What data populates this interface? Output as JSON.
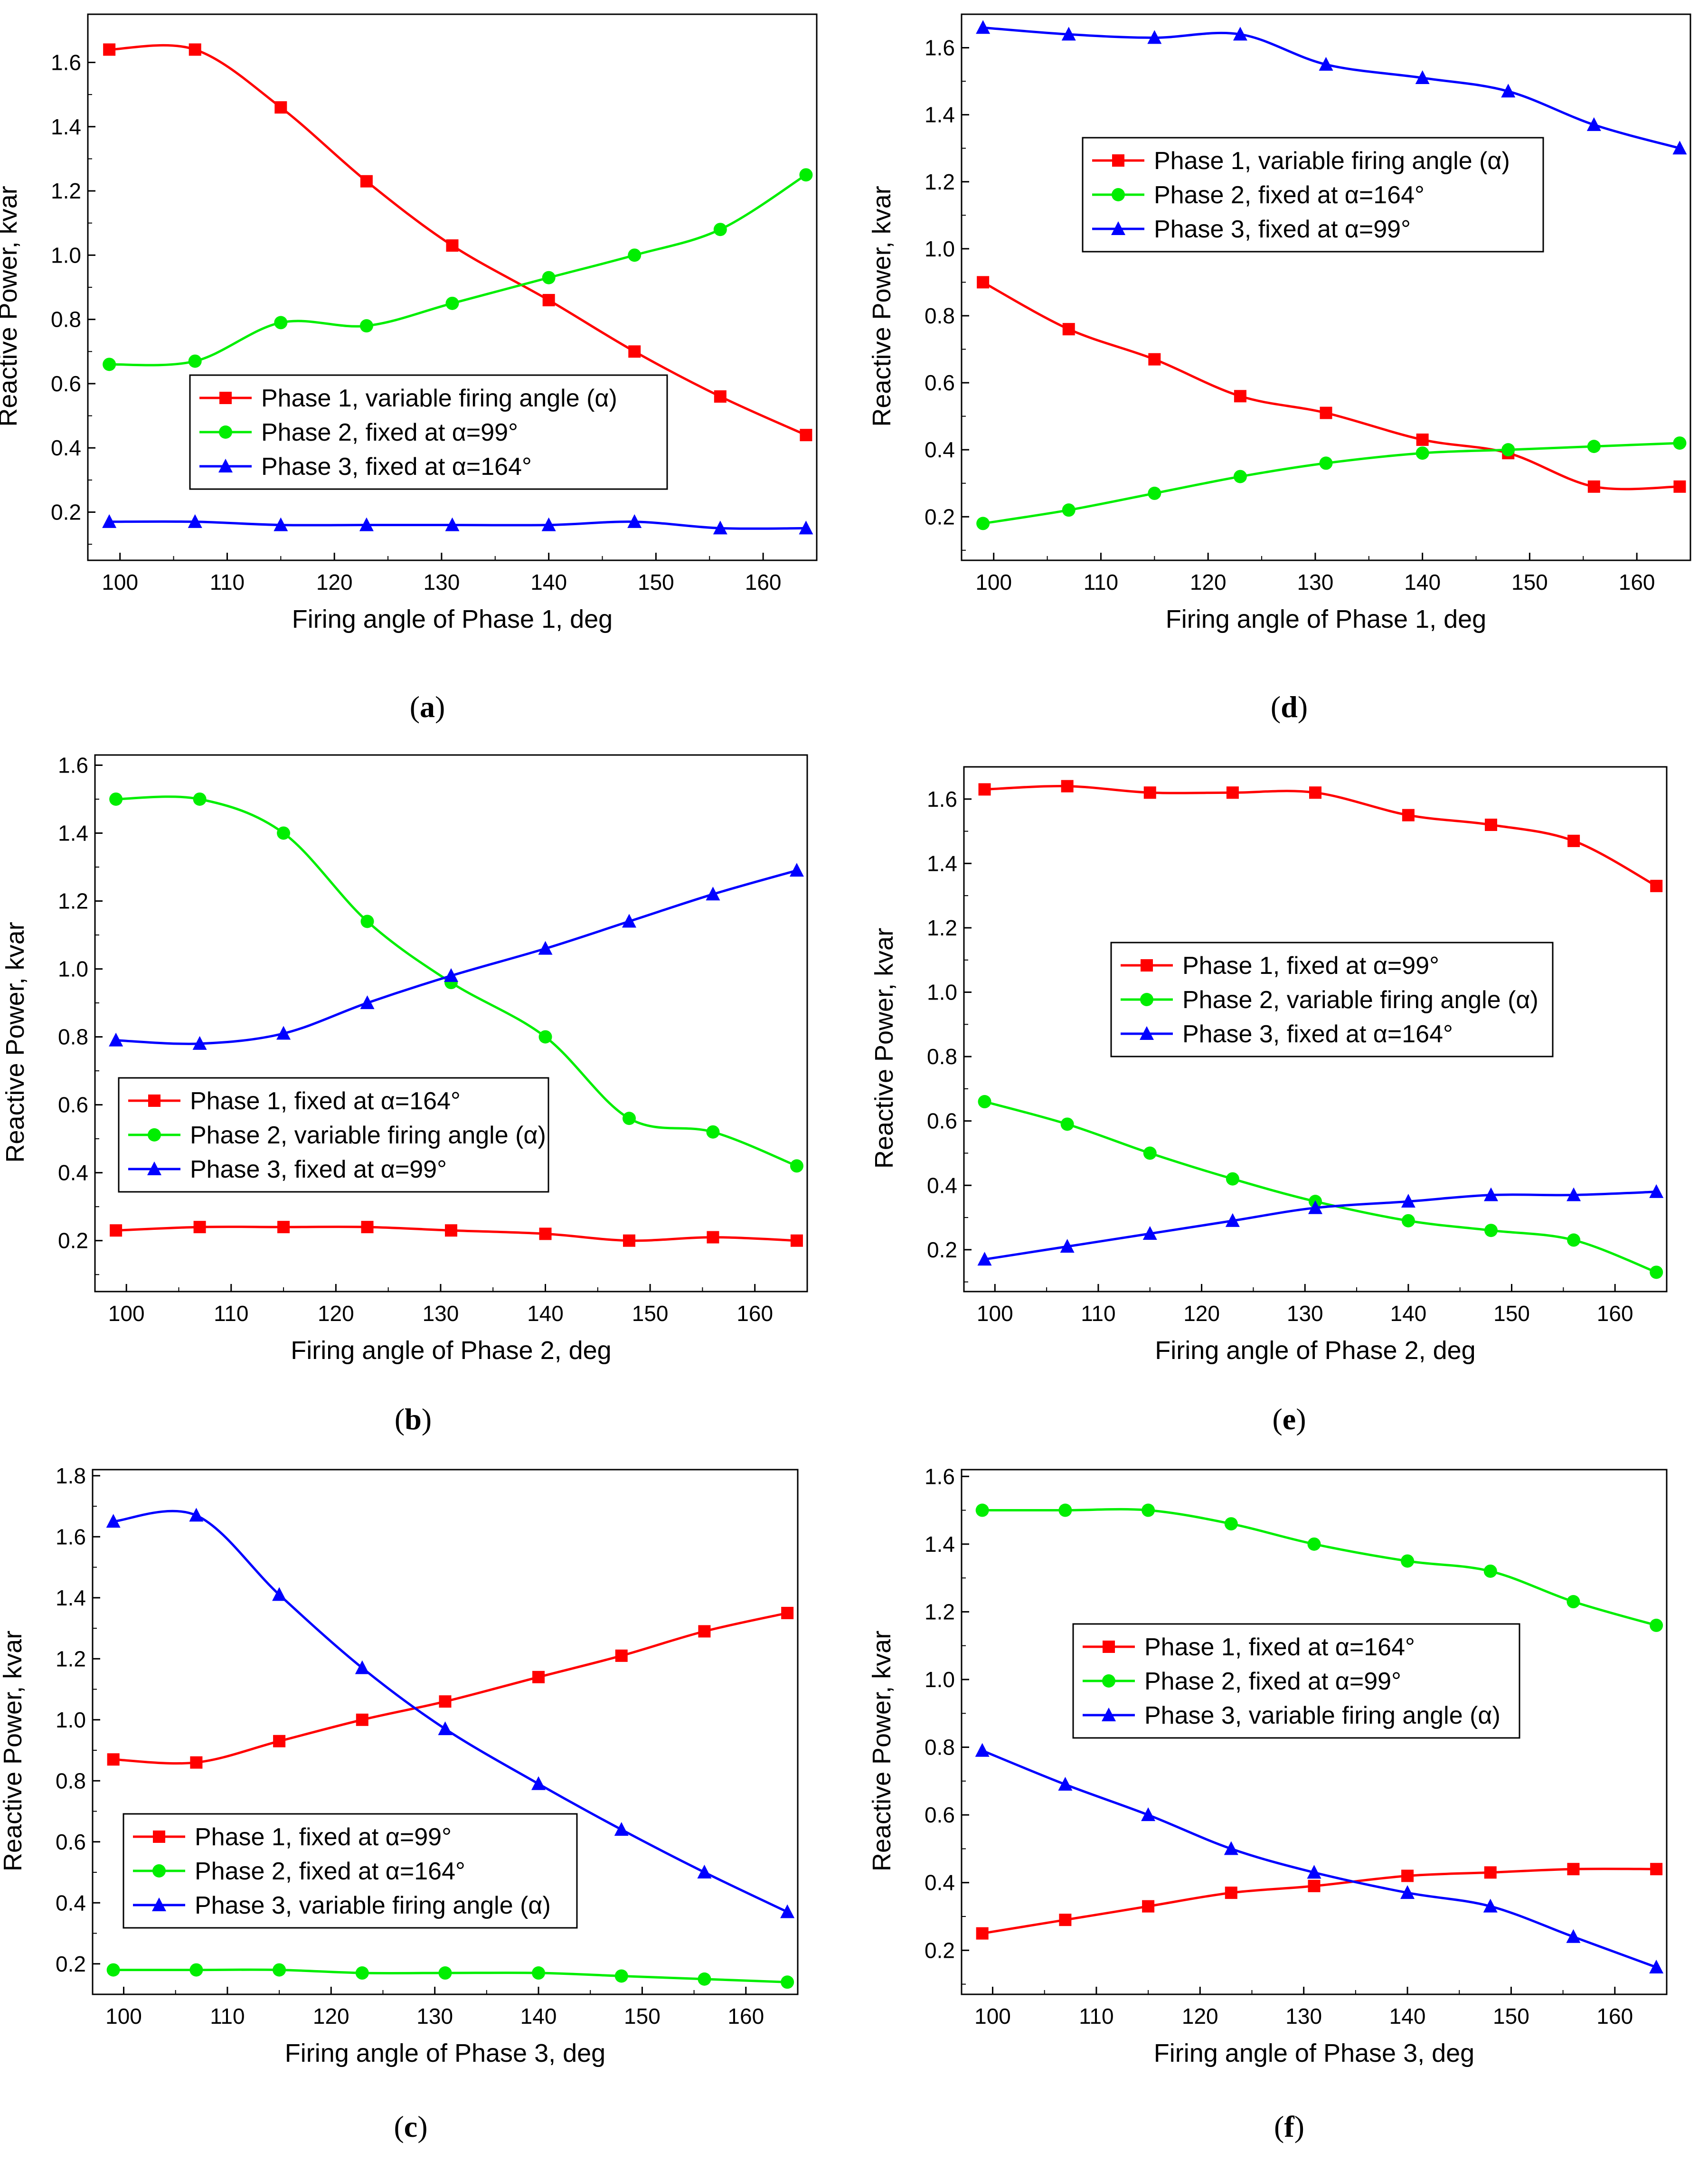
{
  "chart_data": [
    {
      "id": "a",
      "type": "line",
      "caption": "a",
      "xlabel": "Firing angle of Phase 1, deg",
      "ylabel": "Reactive Power, kvar",
      "xlim": [
        97,
        165
      ],
      "ylim": [
        0.05,
        1.75
      ],
      "xticks": [
        100,
        110,
        120,
        130,
        140,
        150,
        160
      ],
      "yticks": [
        0.2,
        0.4,
        0.6,
        0.8,
        1.0,
        1.2,
        1.4,
        1.6
      ],
      "x": [
        99,
        107,
        115,
        123,
        131,
        140,
        148,
        156,
        164
      ],
      "legend_position": "center",
      "series": [
        {
          "name": "Phase 1, variable firing angle (α)",
          "color": "#ff0000",
          "marker": "square",
          "values": [
            1.64,
            1.64,
            1.46,
            1.23,
            1.03,
            0.86,
            0.7,
            0.56,
            0.44
          ]
        },
        {
          "name": "Phase 2, fixed at α=99°",
          "color": "#00ee00",
          "marker": "circle",
          "values": [
            0.66,
            0.67,
            0.79,
            0.78,
            0.85,
            0.93,
            1.0,
            1.08,
            1.25
          ]
        },
        {
          "name": "Phase 3, fixed at α=164°",
          "color": "#0000ff",
          "marker": "triangle",
          "values": [
            0.17,
            0.17,
            0.16,
            0.16,
            0.16,
            0.16,
            0.17,
            0.15,
            0.15
          ]
        }
      ]
    },
    {
      "id": "b",
      "type": "line",
      "caption": "b",
      "xlabel": "Firing angle of Phase 2, deg",
      "ylabel": "Reactive Power, kvar",
      "xlim": [
        97,
        165
      ],
      "ylim": [
        0.05,
        1.63
      ],
      "xticks": [
        100,
        110,
        120,
        130,
        140,
        150,
        160
      ],
      "yticks": [
        0.2,
        0.4,
        0.6,
        0.8,
        1.0,
        1.2,
        1.4,
        1.6
      ],
      "x": [
        99,
        107,
        115,
        123,
        131,
        140,
        148,
        156,
        164
      ],
      "legend_position": "lower-left",
      "series": [
        {
          "name": "Phase 1, fixed at α=164°",
          "color": "#ff0000",
          "marker": "square",
          "values": [
            0.23,
            0.24,
            0.24,
            0.24,
            0.23,
            0.22,
            0.2,
            0.21,
            0.2
          ]
        },
        {
          "name": "Phase 2, variable firing angle (α)",
          "color": "#00ee00",
          "marker": "circle",
          "values": [
            1.5,
            1.5,
            1.4,
            1.14,
            0.96,
            0.8,
            0.56,
            0.52,
            0.42
          ]
        },
        {
          "name": "Phase 3, fixed at α=99°",
          "color": "#0000ff",
          "marker": "triangle",
          "values": [
            0.79,
            0.78,
            0.81,
            0.9,
            0.98,
            1.06,
            1.14,
            1.22,
            1.29
          ]
        }
      ]
    },
    {
      "id": "c",
      "type": "line",
      "caption": "c",
      "xlabel": "Firing angle of Phase 3, deg",
      "ylabel": "Reactive Power, kvar",
      "xlim": [
        97,
        165
      ],
      "ylim": [
        0.1,
        1.82
      ],
      "xticks": [
        100,
        110,
        120,
        130,
        140,
        150,
        160
      ],
      "yticks": [
        0.2,
        0.4,
        0.6,
        0.8,
        1.0,
        1.2,
        1.4,
        1.6,
        1.8
      ],
      "x": [
        99,
        107,
        115,
        123,
        131,
        140,
        148,
        156,
        164
      ],
      "legend_position": "lower-left",
      "series": [
        {
          "name": "Phase 1, fixed at α=99°",
          "color": "#ff0000",
          "marker": "square",
          "values": [
            0.87,
            0.86,
            0.93,
            1.0,
            1.06,
            1.14,
            1.21,
            1.29,
            1.35
          ]
        },
        {
          "name": "Phase 2, fixed at α=164°",
          "color": "#00ee00",
          "marker": "circle",
          "values": [
            0.18,
            0.18,
            0.18,
            0.17,
            0.17,
            0.17,
            0.16,
            0.15,
            0.14
          ]
        },
        {
          "name": "Phase 3, variable firing angle (α)",
          "color": "#0000ff",
          "marker": "triangle",
          "values": [
            1.65,
            1.67,
            1.41,
            1.17,
            0.97,
            0.79,
            0.64,
            0.5,
            0.37
          ]
        }
      ]
    },
    {
      "id": "d",
      "type": "line",
      "caption": "d",
      "xlabel": "Firing angle of Phase 1, deg",
      "ylabel": "Reactive Power, kvar",
      "xlim": [
        97,
        165
      ],
      "ylim": [
        0.07,
        1.7
      ],
      "xticks": [
        100,
        110,
        120,
        130,
        140,
        150,
        160
      ],
      "yticks": [
        0.2,
        0.4,
        0.6,
        0.8,
        1.0,
        1.2,
        1.4,
        1.6
      ],
      "x": [
        99,
        107,
        115,
        123,
        131,
        140,
        148,
        156,
        164
      ],
      "legend_position": "upper-center",
      "series": [
        {
          "name": "Phase 1, variable firing angle (α)",
          "color": "#ff0000",
          "marker": "square",
          "values": [
            0.9,
            0.76,
            0.67,
            0.56,
            0.51,
            0.43,
            0.39,
            0.29,
            0.29
          ]
        },
        {
          "name": "Phase 2, fixed at α=164°",
          "color": "#00ee00",
          "marker": "circle",
          "values": [
            0.18,
            0.22,
            0.27,
            0.32,
            0.36,
            0.39,
            0.4,
            0.41,
            0.42
          ]
        },
        {
          "name": "Phase 3, fixed at α=99°",
          "color": "#0000ff",
          "marker": "triangle",
          "values": [
            1.66,
            1.64,
            1.63,
            1.64,
            1.55,
            1.51,
            1.47,
            1.37,
            1.3
          ]
        }
      ]
    },
    {
      "id": "e",
      "type": "line",
      "caption": "e",
      "xlabel": "Firing angle of Phase 2, deg",
      "ylabel": "Reactive Power, kvar",
      "xlim": [
        97,
        165
      ],
      "ylim": [
        0.07,
        1.7
      ],
      "xticks": [
        100,
        110,
        120,
        130,
        140,
        150,
        160
      ],
      "yticks": [
        0.2,
        0.4,
        0.6,
        0.8,
        1.0,
        1.2,
        1.4,
        1.6
      ],
      "x": [
        99,
        107,
        115,
        123,
        131,
        140,
        148,
        156,
        164
      ],
      "legend_position": "center-right",
      "series": [
        {
          "name": "Phase 1, fixed at α=99°",
          "color": "#ff0000",
          "marker": "square",
          "values": [
            1.63,
            1.64,
            1.62,
            1.62,
            1.62,
            1.55,
            1.52,
            1.47,
            1.33
          ]
        },
        {
          "name": "Phase 2, variable firing angle (α)",
          "color": "#00ee00",
          "marker": "circle",
          "values": [
            0.66,
            0.59,
            0.5,
            0.42,
            0.35,
            0.29,
            0.26,
            0.23,
            0.13
          ]
        },
        {
          "name": "Phase 3, fixed at α=164°",
          "color": "#0000ff",
          "marker": "triangle",
          "values": [
            0.17,
            0.21,
            0.25,
            0.29,
            0.33,
            0.35,
            0.37,
            0.37,
            0.38
          ]
        }
      ]
    },
    {
      "id": "f",
      "type": "line",
      "caption": "f",
      "xlabel": "Firing angle of Phase 3, deg",
      "ylabel": "Reactive Power, kvar",
      "xlim": [
        97,
        165
      ],
      "ylim": [
        0.07,
        1.62
      ],
      "xticks": [
        100,
        110,
        120,
        130,
        140,
        150,
        160
      ],
      "yticks": [
        0.2,
        0.4,
        0.6,
        0.8,
        1.0,
        1.2,
        1.4,
        1.6
      ],
      "x": [
        99,
        107,
        115,
        123,
        131,
        140,
        148,
        156,
        164
      ],
      "legend_position": "center",
      "series": [
        {
          "name": "Phase 1, fixed at α=164°",
          "color": "#ff0000",
          "marker": "square",
          "values": [
            0.25,
            0.29,
            0.33,
            0.37,
            0.39,
            0.42,
            0.43,
            0.44,
            0.44
          ]
        },
        {
          "name": "Phase 2, fixed at α=99°",
          "color": "#00ee00",
          "marker": "circle",
          "values": [
            1.5,
            1.5,
            1.5,
            1.46,
            1.4,
            1.35,
            1.32,
            1.23,
            1.16
          ]
        },
        {
          "name": "Phase 3, variable firing angle (α)",
          "color": "#0000ff",
          "marker": "triangle",
          "values": [
            0.79,
            0.69,
            0.6,
            0.5,
            0.43,
            0.37,
            0.33,
            0.24,
            0.15
          ]
        }
      ]
    }
  ]
}
